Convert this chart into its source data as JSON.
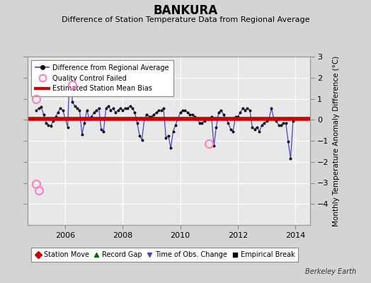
{
  "title": "BANKURA",
  "subtitle": "Difference of Station Temperature Data from Regional Average",
  "ylabel": "Monthly Temperature Anomaly Difference (°C)",
  "credit": "Berkeley Earth",
  "xlim": [
    2004.7,
    2014.5
  ],
  "ylim": [
    -5,
    3
  ],
  "yticks": [
    -4,
    -3,
    -2,
    -1,
    0,
    1,
    2,
    3
  ],
  "xticks": [
    2006,
    2008,
    2010,
    2012,
    2014
  ],
  "bias_line_y": 0.05,
  "bias_color": "#cc0000",
  "line_color": "#4444cc",
  "dot_color": "#000000",
  "fig_bg": "#d4d4d4",
  "plot_bg": "#e8e8e8",
  "qc_color": "#ff80c0",
  "grid_color": "#ffffff",
  "time_series_x": [
    2005.0,
    2005.083,
    2005.167,
    2005.25,
    2005.333,
    2005.417,
    2005.5,
    2005.583,
    2005.667,
    2005.75,
    2005.833,
    2005.917,
    2006.0,
    2006.083,
    2006.167,
    2006.25,
    2006.333,
    2006.417,
    2006.5,
    2006.583,
    2006.667,
    2006.75,
    2006.833,
    2006.917,
    2007.0,
    2007.083,
    2007.167,
    2007.25,
    2007.333,
    2007.417,
    2007.5,
    2007.583,
    2007.667,
    2007.75,
    2007.833,
    2007.917,
    2008.0,
    2008.083,
    2008.167,
    2008.25,
    2008.333,
    2008.417,
    2008.5,
    2008.583,
    2008.667,
    2008.75,
    2008.833,
    2008.917,
    2009.0,
    2009.083,
    2009.167,
    2009.25,
    2009.333,
    2009.417,
    2009.5,
    2009.583,
    2009.667,
    2009.75,
    2009.833,
    2009.917,
    2010.0,
    2010.083,
    2010.167,
    2010.25,
    2010.333,
    2010.417,
    2010.5,
    2010.583,
    2010.667,
    2010.75,
    2010.833,
    2010.917,
    2011.0,
    2011.083,
    2011.167,
    2011.25,
    2011.333,
    2011.417,
    2011.5,
    2011.583,
    2011.667,
    2011.75,
    2011.833,
    2011.917,
    2012.0,
    2012.083,
    2012.167,
    2012.25,
    2012.333,
    2012.417,
    2012.5,
    2012.583,
    2012.667,
    2012.75,
    2012.833,
    2012.917,
    2013.0,
    2013.083,
    2013.167,
    2013.25,
    2013.333,
    2013.417,
    2013.5,
    2013.583,
    2013.667,
    2013.75,
    2013.833,
    2013.917
  ],
  "time_series_y": [
    0.45,
    0.55,
    0.6,
    0.25,
    -0.15,
    -0.25,
    -0.3,
    -0.05,
    0.15,
    0.35,
    0.55,
    0.45,
    0.05,
    -0.35,
    2.55,
    0.85,
    0.65,
    0.55,
    0.45,
    -0.7,
    -0.15,
    0.45,
    0.05,
    0.15,
    0.35,
    0.45,
    0.55,
    -0.45,
    -0.55,
    0.55,
    0.65,
    0.45,
    0.55,
    0.35,
    0.45,
    0.55,
    0.45,
    0.55,
    0.55,
    0.65,
    0.55,
    0.35,
    -0.15,
    -0.75,
    -0.95,
    0.05,
    0.25,
    0.15,
    0.15,
    0.25,
    0.35,
    0.45,
    0.45,
    0.55,
    -0.85,
    -0.75,
    -1.35,
    -0.55,
    -0.25,
    0.05,
    0.35,
    0.45,
    0.45,
    0.35,
    0.25,
    0.25,
    0.15,
    0.05,
    -0.15,
    -0.15,
    -0.05,
    0.05,
    0.05,
    0.15,
    -1.25,
    -0.35,
    0.35,
    0.45,
    0.25,
    0.05,
    -0.15,
    -0.45,
    -0.55,
    0.15,
    0.15,
    0.35,
    0.55,
    0.45,
    0.55,
    0.45,
    -0.35,
    -0.45,
    -0.35,
    -0.55,
    -0.25,
    -0.15,
    -0.05,
    0.05,
    0.55,
    0.05,
    -0.05,
    -0.25,
    -0.25,
    -0.15,
    -0.15,
    -1.05,
    -1.85,
    -0.05
  ],
  "qc_failed": [
    [
      2005.0,
      1.0
    ],
    [
      2006.25,
      1.65
    ],
    [
      2011.0,
      -1.15
    ],
    [
      2005.0,
      -3.05
    ],
    [
      2005.083,
      -3.35
    ]
  ],
  "legend1": [
    {
      "label": "Difference from Regional Average",
      "lc": "#4444cc",
      "mc": "#000000"
    },
    {
      "label": "Quality Control Failed",
      "mc": "#ff80c0"
    },
    {
      "label": "Estimated Station Mean Bias",
      "lc": "#cc0000"
    }
  ],
  "legend2": [
    {
      "label": "Station Move",
      "marker": "D",
      "color": "#cc0000"
    },
    {
      "label": "Record Gap",
      "marker": "^",
      "color": "#006600"
    },
    {
      "label": "Time of Obs. Change",
      "marker": "v",
      "color": "#4444cc"
    },
    {
      "label": "Empirical Break",
      "marker": "s",
      "color": "#000000"
    }
  ]
}
